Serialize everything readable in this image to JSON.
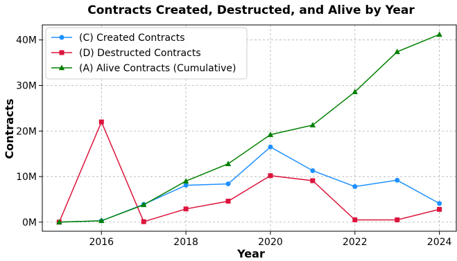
{
  "chart_data": {
    "type": "line",
    "title": "Contracts Created, Destructed, and Alive by Year",
    "xlabel": "Year",
    "ylabel": "Contracts",
    "x": [
      2015,
      2016,
      2017,
      2018,
      2019,
      2020,
      2021,
      2022,
      2023,
      2024
    ],
    "xlim": [
      2014.6,
      2024.4
    ],
    "ylim": [
      -2.0,
      43.3
    ],
    "x_ticks": [
      2016,
      2018,
      2020,
      2022,
      2024
    ],
    "x_tick_labels": [
      "2016",
      "2018",
      "2020",
      "2022",
      "2024"
    ],
    "y_ticks": [
      0,
      10,
      20,
      30,
      40
    ],
    "y_tick_labels": [
      "0M",
      "10M",
      "20M",
      "30M",
      "40M"
    ],
    "grid": true,
    "legend_position": "top-left",
    "series": [
      {
        "name": "(C) Created Contracts",
        "color": "#1e90ff",
        "marker": "circle",
        "values": [
          0.0,
          0.3,
          3.9,
          8.1,
          8.4,
          16.5,
          11.3,
          7.8,
          9.2,
          4.1
        ]
      },
      {
        "name": "(D) Destructed Contracts",
        "color": "#dc143c",
        "marker": "square",
        "values": [
          0.0,
          22.0,
          0.1,
          2.9,
          4.6,
          10.2,
          9.1,
          0.5,
          0.5,
          2.8
        ]
      },
      {
        "name": "(A) Alive Contracts (Cumulative)",
        "color": "#008000",
        "marker": "triangle",
        "values": [
          0.0,
          0.3,
          3.8,
          9.0,
          12.8,
          19.2,
          21.3,
          28.6,
          37.4,
          41.2
        ]
      }
    ]
  }
}
